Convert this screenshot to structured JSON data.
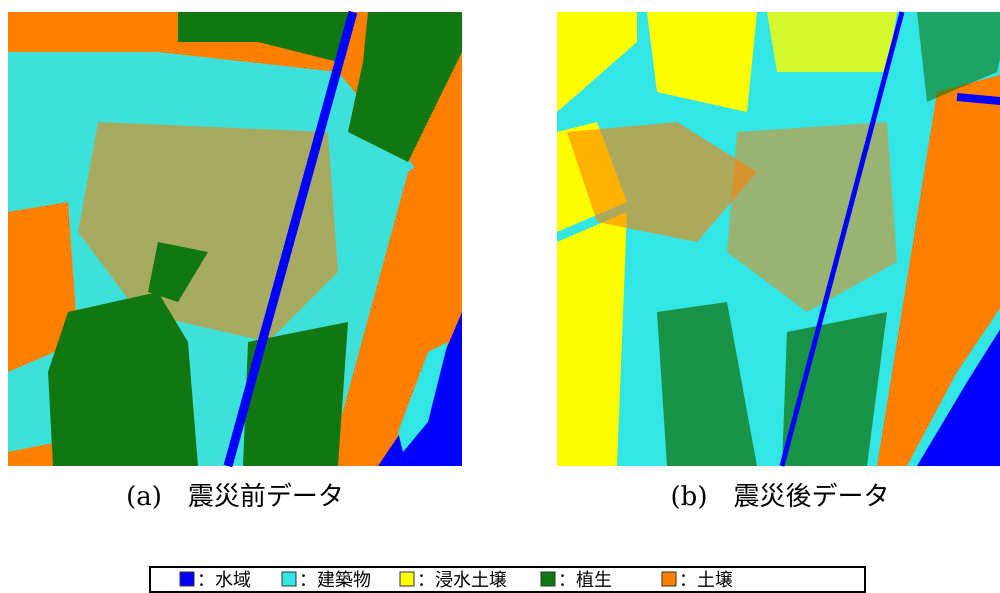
{
  "panels": [
    {
      "caption": "(a)　震災前データ"
    },
    {
      "caption": "(b)　震災後データ"
    }
  ],
  "legend": [
    {
      "label": "：水域",
      "color": "#0000ff"
    },
    {
      "label": "：建築物",
      "color": "#33e6e6"
    },
    {
      "label": "：浸水土壌",
      "color": "#ffff00"
    },
    {
      "label": "：植生",
      "color": "#117711"
    },
    {
      "label": "：土壌",
      "color": "#ff8000"
    }
  ]
}
